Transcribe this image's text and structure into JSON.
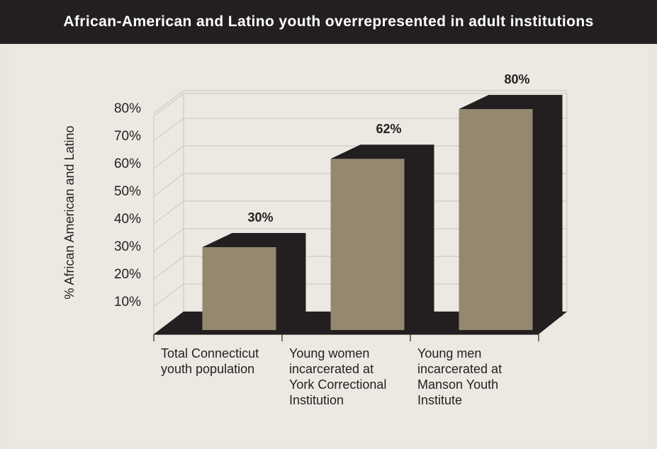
{
  "header": {
    "title": "African-American and Latino youth overrepresented in adult institutions"
  },
  "colors": {
    "header_bg": "#231f20",
    "bar_face": "#948870",
    "bar_shadow": "#231f20",
    "background": "#ece9e3",
    "grid": "#c9c5bf"
  },
  "chart_data": {
    "type": "bar",
    "title": "African-American and Latino youth overrepresented in adult institutions",
    "ylabel": "% African American and Latino",
    "xlabel": "",
    "ylim": [
      0,
      80
    ],
    "yticks": [
      "10%",
      "20%",
      "30%",
      "40%",
      "50%",
      "60%",
      "70%",
      "80%"
    ],
    "grid": true,
    "categories": [
      [
        "Total Connecticut",
        "youth population"
      ],
      [
        "Young women",
        "incarcerated at",
        "York Correctional",
        "Institution"
      ],
      [
        "Young men",
        "incarcerated at",
        "Manson Youth",
        "Institute"
      ]
    ],
    "values": [
      30,
      62,
      80
    ],
    "value_labels": [
      "30%",
      "62%",
      "80%"
    ]
  }
}
